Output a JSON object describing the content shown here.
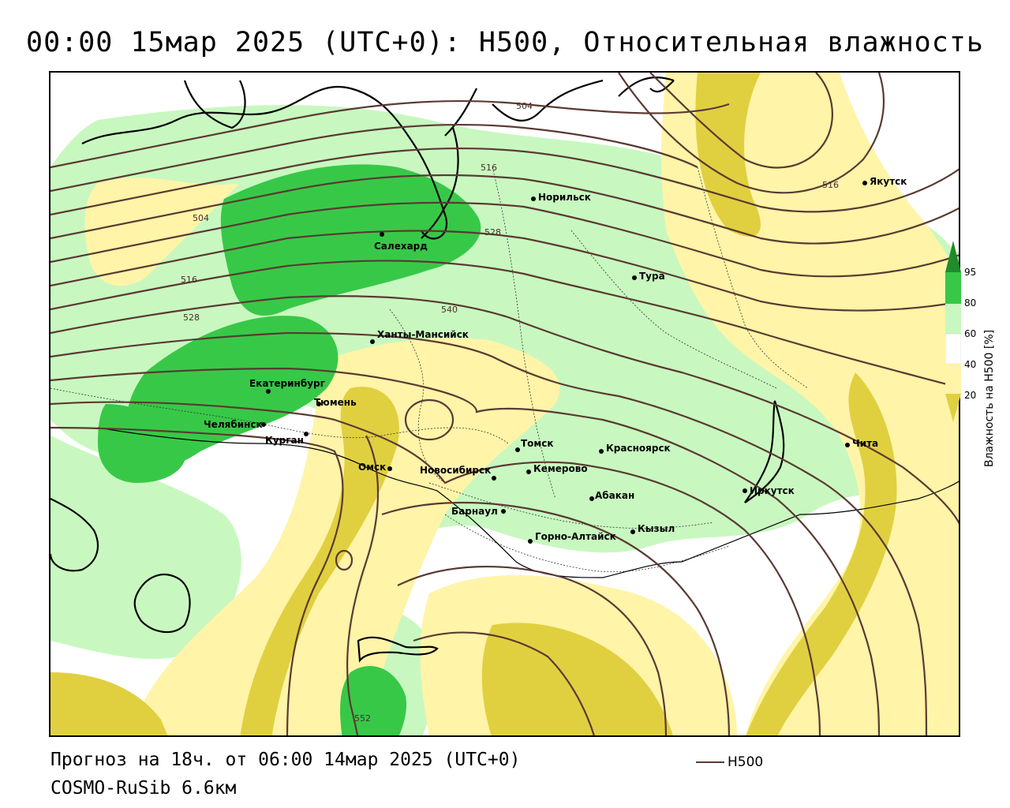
{
  "header": {
    "title": "00:00 15мар 2025 (UTC+0): H500, Относительная влажность"
  },
  "footer": {
    "forecast": "Прогноз на 18ч. от 06:00 14мар 2025 (UTC+0)",
    "model": "COSMO-RuSib 6.6км",
    "legend_label": "H500"
  },
  "colorbar": {
    "title": "Влажность на H500 [%]",
    "ticks": [
      "95",
      "80",
      "60",
      "40",
      "20"
    ],
    "colors": {
      "c95": "#1e8c2a",
      "c80": "#38c848",
      "c60": "#c8f8c0",
      "c40": "#ffffff",
      "c20": "#fff4a8",
      "c0": "#e0d040"
    }
  },
  "map": {
    "contour_color": "#5a3a32",
    "coast_color": "#000000",
    "cities": [
      {
        "name": "Норильск"
      },
      {
        "name": "Якутск"
      },
      {
        "name": "Салехард"
      },
      {
        "name": "Тура"
      },
      {
        "name": "Ханты-Мансийск"
      },
      {
        "name": "Екатеринбург"
      },
      {
        "name": "Тюмень"
      },
      {
        "name": "Челябинск"
      },
      {
        "name": "Курган"
      },
      {
        "name": "Омск"
      },
      {
        "name": "Новосибирск"
      },
      {
        "name": "Томск"
      },
      {
        "name": "Кемерово"
      },
      {
        "name": "Красноярск"
      },
      {
        "name": "Барнаул"
      },
      {
        "name": "Абакан"
      },
      {
        "name": "Горно-Алтайск"
      },
      {
        "name": "Кызыл"
      },
      {
        "name": "Иркутск"
      },
      {
        "name": "Чита"
      }
    ],
    "contour_labels": [
      "504",
      "516",
      "528",
      "504",
      "516",
      "528",
      "540",
      "552",
      "516"
    ]
  }
}
